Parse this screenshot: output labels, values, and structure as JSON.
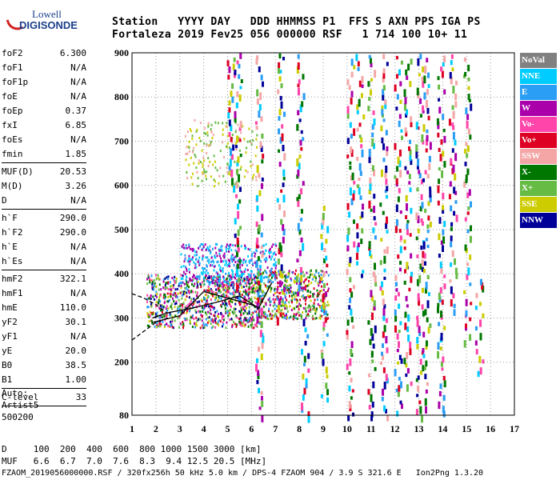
{
  "logo": {
    "line1": "Lowell",
    "line2": "DIGISONDE"
  },
  "header": {
    "labels_row": "Station   YYYY DAY   DDD HHMMSS P1  FFS S AXN PPS IGA PS",
    "values_row": "Fortaleza 2019 Fev25 056 000000 RSF   1 714 100 10+ 11"
  },
  "params": [
    {
      "group": [
        {
          "name": "foF2",
          "value": "6.300"
        },
        {
          "name": "foF1",
          "value": "N/A"
        },
        {
          "name": "foF1p",
          "value": "N/A"
        },
        {
          "name": "foE",
          "value": "N/A"
        },
        {
          "name": "foEp",
          "value": "0.37"
        },
        {
          "name": "fxI",
          "value": "6.85"
        },
        {
          "name": "foEs",
          "value": "N/A"
        },
        {
          "name": "fmin",
          "value": "1.85"
        }
      ]
    },
    {
      "group": [
        {
          "name": "MUF(D)",
          "value": "20.53"
        },
        {
          "name": "M(D)",
          "value": "3.26"
        },
        {
          "name": "D",
          "value": "N/A"
        }
      ]
    },
    {
      "group": [
        {
          "name": "h`F",
          "value": "290.0"
        },
        {
          "name": "h`F2",
          "value": "290.0"
        },
        {
          "name": "h`E",
          "value": "N/A"
        },
        {
          "name": "h`Es",
          "value": "N/A"
        }
      ]
    },
    {
      "group": [
        {
          "name": "hmF2",
          "value": "322.1"
        },
        {
          "name": "hmF1",
          "value": "N/A"
        },
        {
          "name": "hmE",
          "value": "110.0"
        },
        {
          "name": "yF2",
          "value": "30.1"
        },
        {
          "name": "yF1",
          "value": "N/A"
        },
        {
          "name": "yE",
          "value": "20.0"
        },
        {
          "name": "B0",
          "value": "38.5"
        },
        {
          "name": "B1",
          "value": "1.00"
        }
      ]
    },
    {
      "group": [
        {
          "name": "C-level",
          "value": "33"
        }
      ]
    }
  ],
  "auto": [
    "Auto:",
    "Artist5",
    "500200"
  ],
  "footer": {
    "d_row": "D     100  200  400  600  800 1000 1500 3000 [km]",
    "muf_row": "MUF   6.6  6.7  7.0  7.6  8.3  9.4 12.5 20.5 [MHz]",
    "file_row": "FZAOM_2019056000000.RSF / 320fx256h 50 kHz 5.0 km / DPS-4 FZAOM 904 / 3.9 S 321.6 E   Ion2Png 1.3.20"
  },
  "legend": [
    {
      "label": "NoVal",
      "color": "#808080"
    },
    {
      "label": "NNE",
      "color": "#00ccff"
    },
    {
      "label": "E",
      "color": "#2a9df4"
    },
    {
      "label": "W",
      "color": "#aa00aa"
    },
    {
      "label": "Vo-",
      "color": "#ff44aa"
    },
    {
      "label": "Vo+",
      "color": "#dd0022"
    },
    {
      "label": "SSW",
      "color": "#f4a6a6"
    },
    {
      "label": "X-",
      "color": "#007700"
    },
    {
      "label": "X+",
      "color": "#66bb44"
    },
    {
      "label": "SSE",
      "color": "#cccc00"
    },
    {
      "label": "NNW",
      "color": "#000099"
    }
  ],
  "chart_data": {
    "type": "scatter",
    "xlim": [
      1,
      17
    ],
    "ylim": [
      80,
      900
    ],
    "x_ticks": [
      1,
      2,
      3,
      4,
      5,
      6,
      7,
      8,
      9,
      10,
      11,
      12,
      13,
      14,
      15,
      16,
      17
    ],
    "y_ticks": [
      80,
      200,
      300,
      400,
      500,
      600,
      700,
      800,
      900
    ],
    "grid": true,
    "legend_position": "right",
    "profile_curve": [
      [
        1.85,
        300
      ],
      [
        2.5,
        312
      ],
      [
        3.5,
        322
      ],
      [
        4.5,
        335
      ],
      [
        5.5,
        350
      ],
      [
        6.3,
        322
      ],
      [
        6.85,
        380
      ]
    ],
    "virtual_height_trace": [
      [
        1.85,
        290
      ],
      [
        3,
        305
      ],
      [
        4,
        360
      ],
      [
        5,
        345
      ],
      [
        6,
        330
      ],
      [
        6.3,
        322
      ]
    ],
    "lower_dashed": [
      [
        1,
        250
      ],
      [
        1.5,
        270
      ],
      [
        2,
        290
      ],
      [
        2.5,
        300
      ]
    ],
    "upper_dashed": [
      [
        1,
        355
      ],
      [
        1.5,
        345
      ],
      [
        2,
        330
      ],
      [
        2.5,
        310
      ]
    ]
  }
}
